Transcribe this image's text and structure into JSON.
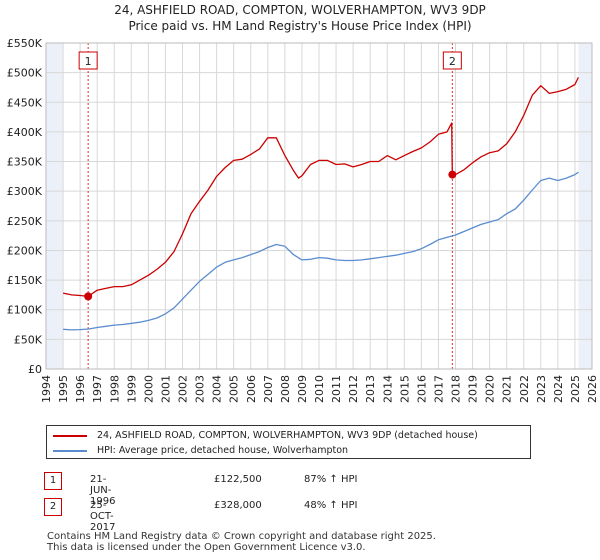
{
  "title_line1": "24, ASHFIELD ROAD, COMPTON, WOLVERHAMPTON, WV3 9DP",
  "title_line2": "Price paid vs. HM Land Registry's House Price Index (HPI)",
  "colors": {
    "property": "#cc0000",
    "hpi": "#5b8ccf",
    "grid": "#d8d8d8",
    "shade": "#dde6f4",
    "marker": "#cc0000"
  },
  "chart_data": {
    "type": "line",
    "title": "24, ASHFIELD ROAD, COMPTON, WOLVERHAMPTON, WV3 9DP — Price paid vs. HM Land Registry's House Price Index (HPI)",
    "xlabel": "",
    "ylabel": "",
    "xlim": [
      1994,
      2026
    ],
    "ylim": [
      0,
      550000
    ],
    "ytick_values": [
      0,
      50000,
      100000,
      150000,
      200000,
      250000,
      300000,
      350000,
      400000,
      450000,
      500000,
      550000
    ],
    "ytick_labels": [
      "£0",
      "£50K",
      "£100K",
      "£150K",
      "£200K",
      "£250K",
      "£300K",
      "£350K",
      "£400K",
      "£450K",
      "£500K",
      "£550K"
    ],
    "xtick_values": [
      1994,
      1995,
      1996,
      1997,
      1998,
      1999,
      2000,
      2001,
      2002,
      2003,
      2004,
      2005,
      2006,
      2007,
      2008,
      2009,
      2010,
      2011,
      2012,
      2013,
      2014,
      2015,
      2016,
      2017,
      2018,
      2019,
      2020,
      2021,
      2022,
      2023,
      2024,
      2025,
      2026
    ],
    "xtick_labels": [
      "1994",
      "1995",
      "1996",
      "1997",
      "1998",
      "1999",
      "2000",
      "2001",
      "2002",
      "2003",
      "2004",
      "2005",
      "2006",
      "2007",
      "2008",
      "2009",
      "2010",
      "2011",
      "2012",
      "2013",
      "2014",
      "2015",
      "2016",
      "2017",
      "2018",
      "2019",
      "2020",
      "2021",
      "2022",
      "2023",
      "2024",
      "2025",
      "2026"
    ],
    "data_start": 1995.0,
    "data_end": 2025.2,
    "future_start": 2025.2,
    "series": [
      {
        "name": "24, ASHFIELD ROAD, COMPTON, WOLVERHAMPTON, WV3 9DP (detached house)",
        "x": [
          1995.0,
          1995.5,
          1996.0,
          1996.47,
          1997.0,
          1997.5,
          1998.0,
          1998.5,
          1999.0,
          1999.5,
          2000.0,
          2000.5,
          2001.0,
          2001.5,
          2002.0,
          2002.5,
          2003.0,
          2003.5,
          2004.0,
          2004.5,
          2005.0,
          2005.5,
          2006.0,
          2006.5,
          2007.0,
          2007.5,
          2008.0,
          2008.5,
          2008.8,
          2009.0,
          2009.5,
          2010.0,
          2010.5,
          2011.0,
          2011.5,
          2012.0,
          2012.5,
          2013.0,
          2013.5,
          2014.0,
          2014.5,
          2015.0,
          2015.5,
          2016.0,
          2016.5,
          2017.0,
          2017.5,
          2017.78,
          2017.815,
          2018.0,
          2018.5,
          2019.0,
          2019.5,
          2020.0,
          2020.5,
          2021.0,
          2021.5,
          2022.0,
          2022.5,
          2023.0,
          2023.5,
          2024.0,
          2024.5,
          2025.0,
          2025.2
        ],
        "values": [
          128000,
          125000,
          124000,
          122500,
          133000,
          136000,
          139000,
          139000,
          142000,
          150000,
          158000,
          168000,
          180000,
          198000,
          228000,
          262000,
          283000,
          302000,
          325000,
          340000,
          352000,
          354000,
          362000,
          371000,
          390000,
          390000,
          360000,
          335000,
          322000,
          326000,
          345000,
          352000,
          352000,
          345000,
          346000,
          341000,
          345000,
          350000,
          350000,
          360000,
          353000,
          360000,
          367000,
          373000,
          383000,
          396000,
          400000,
          415000,
          328000,
          328000,
          336000,
          348000,
          358000,
          365000,
          368000,
          380000,
          400000,
          428000,
          462000,
          478000,
          465000,
          468000,
          472000,
          480000,
          492000
        ]
      },
      {
        "name": "HPI: Average price, detached house, Wolverhampton",
        "x": [
          1995.0,
          1995.5,
          1996.0,
          1996.5,
          1997.0,
          1997.5,
          1998.0,
          1998.5,
          1999.0,
          1999.5,
          2000.0,
          2000.5,
          2001.0,
          2001.5,
          2002.0,
          2002.5,
          2003.0,
          2003.5,
          2004.0,
          2004.5,
          2005.0,
          2005.5,
          2006.0,
          2006.5,
          2007.0,
          2007.5,
          2008.0,
          2008.5,
          2009.0,
          2009.5,
          2010.0,
          2010.5,
          2011.0,
          2011.5,
          2012.0,
          2012.5,
          2013.0,
          2013.5,
          2014.0,
          2014.5,
          2015.0,
          2015.5,
          2016.0,
          2016.5,
          2017.0,
          2017.5,
          2018.0,
          2018.5,
          2019.0,
          2019.5,
          2020.0,
          2020.5,
          2021.0,
          2021.5,
          2022.0,
          2022.5,
          2023.0,
          2023.5,
          2024.0,
          2024.5,
          2025.0,
          2025.2
        ],
        "values": [
          67000,
          66000,
          66500,
          67500,
          70000,
          72000,
          74000,
          75000,
          77000,
          79000,
          82000,
          86000,
          93000,
          103000,
          118000,
          133000,
          148000,
          160000,
          172000,
          180000,
          184000,
          188000,
          193000,
          198000,
          205000,
          210000,
          207000,
          193000,
          184000,
          185000,
          188000,
          187000,
          184000,
          183000,
          183000,
          184000,
          186000,
          188000,
          190000,
          192000,
          195000,
          198000,
          203000,
          210000,
          218000,
          222000,
          226000,
          232000,
          238000,
          244000,
          248000,
          252000,
          262000,
          270000,
          285000,
          302000,
          318000,
          322000,
          318000,
          322000,
          328000,
          332000
        ]
      }
    ],
    "sales": [
      {
        "label": "1",
        "date": "21-JUN-1996",
        "x": 1996.47,
        "price": "£122,500",
        "value": 122500,
        "hpi": "87% ↑ HPI"
      },
      {
        "label": "2",
        "date": "25-OCT-2017",
        "x": 2017.815,
        "price": "£328,000",
        "value": 328000,
        "hpi": "48% ↑ HPI"
      }
    ],
    "legend": [
      "24, ASHFIELD ROAD, COMPTON, WOLVERHAMPTON, WV3 9DP (detached house)",
      "HPI: Average price, detached house, Wolverhampton"
    ]
  },
  "footer_line1": "Contains HM Land Registry data © Crown copyright and database right 2025.",
  "footer_line2": "This data is licensed under the Open Government Licence v3.0."
}
